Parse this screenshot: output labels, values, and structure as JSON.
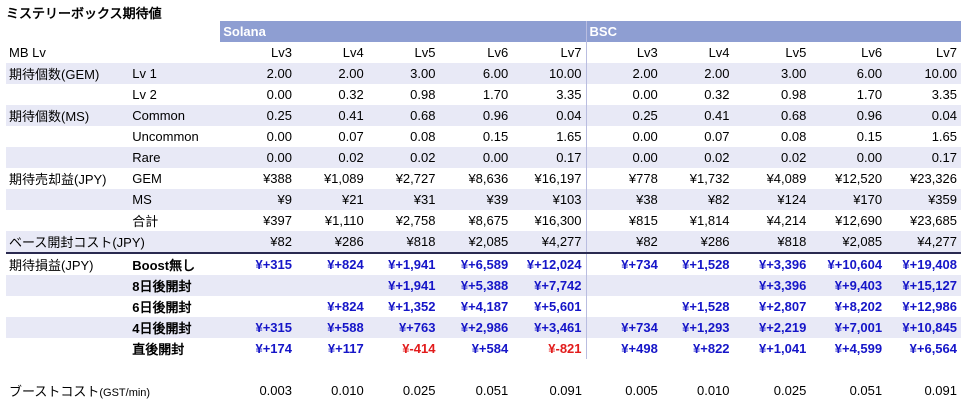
{
  "title": "ミステリーボックス期待値",
  "groups": [
    "Solana",
    "BSC"
  ],
  "header_label": "MB Lv",
  "levels": [
    "Lv3",
    "Lv4",
    "Lv5",
    "Lv6",
    "Lv7"
  ],
  "rows": [
    {
      "label": "期待個数(GEM)",
      "sub": "Lv 1",
      "solana": [
        "2.00",
        "2.00",
        "3.00",
        "6.00",
        "10.00"
      ],
      "bsc": [
        "2.00",
        "2.00",
        "3.00",
        "6.00",
        "10.00"
      ]
    },
    {
      "label": "",
      "sub": "Lv 2",
      "solana": [
        "0.00",
        "0.32",
        "0.98",
        "1.70",
        "3.35"
      ],
      "bsc": [
        "0.00",
        "0.32",
        "0.98",
        "1.70",
        "3.35"
      ]
    },
    {
      "label": "期待個数(MS)",
      "sub": "Common",
      "solana": [
        "0.25",
        "0.41",
        "0.68",
        "0.96",
        "0.04"
      ],
      "bsc": [
        "0.25",
        "0.41",
        "0.68",
        "0.96",
        "0.04"
      ]
    },
    {
      "label": "",
      "sub": "Uncommon",
      "solana": [
        "0.00",
        "0.07",
        "0.08",
        "0.15",
        "1.65"
      ],
      "bsc": [
        "0.00",
        "0.07",
        "0.08",
        "0.15",
        "1.65"
      ]
    },
    {
      "label": "",
      "sub": "Rare",
      "solana": [
        "0.00",
        "0.02",
        "0.02",
        "0.00",
        "0.17"
      ],
      "bsc": [
        "0.00",
        "0.02",
        "0.02",
        "0.00",
        "0.17"
      ]
    },
    {
      "label": "期待売却益(JPY)",
      "sub": "GEM",
      "solana": [
        "¥388",
        "¥1,089",
        "¥2,727",
        "¥8,636",
        "¥16,197"
      ],
      "bsc": [
        "¥778",
        "¥1,732",
        "¥4,089",
        "¥12,520",
        "¥23,326"
      ]
    },
    {
      "label": "",
      "sub": "MS",
      "solana": [
        "¥9",
        "¥21",
        "¥31",
        "¥39",
        "¥103"
      ],
      "bsc": [
        "¥38",
        "¥82",
        "¥124",
        "¥170",
        "¥359"
      ]
    },
    {
      "label": "",
      "sub": "合計",
      "solana": [
        "¥397",
        "¥1,110",
        "¥2,758",
        "¥8,675",
        "¥16,300"
      ],
      "bsc": [
        "¥815",
        "¥1,814",
        "¥4,214",
        "¥12,690",
        "¥23,685"
      ]
    },
    {
      "label": "ベース開封コスト(JPY)",
      "sub": "",
      "solana": [
        "¥82",
        "¥286",
        "¥818",
        "¥2,085",
        "¥4,277"
      ],
      "bsc": [
        "¥82",
        "¥286",
        "¥818",
        "¥2,085",
        "¥4,277"
      ]
    }
  ],
  "loss_label": "期待損益(JPY)",
  "loss_rows": [
    {
      "sub": "Boost無し",
      "solana": [
        "¥+315",
        "¥+824",
        "¥+1,941",
        "¥+6,589",
        "¥+12,024"
      ],
      "bsc": [
        "¥+734",
        "¥+1,528",
        "¥+3,396",
        "¥+10,604",
        "¥+19,408"
      ]
    },
    {
      "sub": "8日後開封",
      "solana": [
        "",
        "",
        "¥+1,941",
        "¥+5,388",
        "¥+7,742"
      ],
      "bsc": [
        "",
        "",
        "¥+3,396",
        "¥+9,403",
        "¥+15,127"
      ]
    },
    {
      "sub": "6日後開封",
      "solana": [
        "",
        "¥+824",
        "¥+1,352",
        "¥+4,187",
        "¥+5,601"
      ],
      "bsc": [
        "",
        "¥+1,528",
        "¥+2,807",
        "¥+8,202",
        "¥+12,986"
      ]
    },
    {
      "sub": "4日後開封",
      "solana": [
        "¥+315",
        "¥+588",
        "¥+763",
        "¥+2,986",
        "¥+3,461"
      ],
      "bsc": [
        "¥+734",
        "¥+1,293",
        "¥+2,219",
        "¥+7,001",
        "¥+10,845"
      ]
    },
    {
      "sub": "直後開封",
      "solana": [
        "¥+174",
        "¥+117",
        "¥-414",
        "¥+584",
        "¥-821"
      ],
      "bsc": [
        "¥+498",
        "¥+822",
        "¥+1,041",
        "¥+4,599",
        "¥+6,564"
      ]
    }
  ],
  "boost": {
    "label": "ブーストコスト",
    "unit": "(GST/min)",
    "solana": [
      "0.003",
      "0.010",
      "0.025",
      "0.051",
      "0.091"
    ],
    "bsc": [
      "0.005",
      "0.010",
      "0.025",
      "0.051",
      "0.091"
    ]
  },
  "colors": {
    "header": "#8e9ed2",
    "shade": "#e8e9f6",
    "positive": "#1515c8",
    "negative": "#e21b1b"
  }
}
